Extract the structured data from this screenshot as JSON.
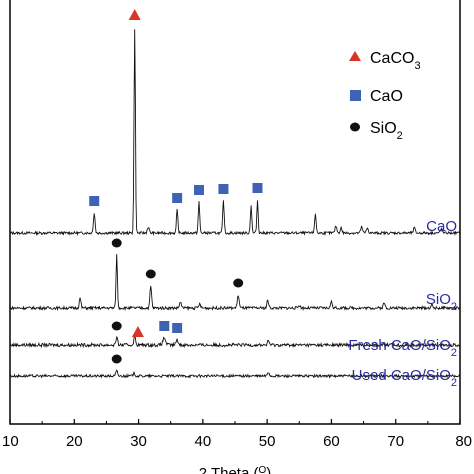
{
  "chart_data": {
    "type": "line",
    "xlabel": "2 Theta (°)",
    "xlim": [
      10,
      80
    ],
    "x_ticks": [
      "10",
      "20",
      "30",
      "40",
      "50",
      "60",
      "70",
      "80"
    ],
    "legend": [
      {
        "marker": "triangle",
        "color": "#d8352a",
        "label": "CaCO3"
      },
      {
        "marker": "square",
        "color": "#3f63b4",
        "label": "CaO"
      },
      {
        "marker": "circle",
        "color": "#111111",
        "label": "SiO2"
      }
    ],
    "series": [
      {
        "name": "CaO",
        "peaks": [
          {
            "x": 23.1,
            "h": 20,
            "w": 0.18
          },
          {
            "x": 29.4,
            "h": 205,
            "w": 0.15
          },
          {
            "x": 31.5,
            "h": 6,
            "w": 0.2
          },
          {
            "x": 36.0,
            "h": 23,
            "w": 0.16
          },
          {
            "x": 39.4,
            "h": 31,
            "w": 0.16
          },
          {
            "x": 43.2,
            "h": 32,
            "w": 0.16
          },
          {
            "x": 47.5,
            "h": 28,
            "w": 0.15
          },
          {
            "x": 48.5,
            "h": 33,
            "w": 0.15
          },
          {
            "x": 57.5,
            "h": 18,
            "w": 0.18
          },
          {
            "x": 60.7,
            "h": 7,
            "w": 0.2
          },
          {
            "x": 61.5,
            "h": 5,
            "w": 0.2
          },
          {
            "x": 64.7,
            "h": 6,
            "w": 0.2
          },
          {
            "x": 65.6,
            "h": 5,
            "w": 0.2
          },
          {
            "x": 72.9,
            "h": 5,
            "w": 0.2
          },
          {
            "x": 77.1,
            "h": 4,
            "w": 0.2
          }
        ],
        "markers": [
          {
            "x": 23.1,
            "shape": "square"
          },
          {
            "x": 29.4,
            "shape": "triangle"
          },
          {
            "x": 36.0,
            "shape": "square"
          },
          {
            "x": 39.4,
            "shape": "square"
          },
          {
            "x": 43.2,
            "shape": "square"
          },
          {
            "x": 48.5,
            "shape": "square"
          }
        ]
      },
      {
        "name": "SiO2",
        "peaks": [
          {
            "x": 20.9,
            "h": 10,
            "w": 0.18
          },
          {
            "x": 26.6,
            "h": 53,
            "w": 0.15
          },
          {
            "x": 31.9,
            "h": 22,
            "w": 0.18
          },
          {
            "x": 36.5,
            "h": 6,
            "w": 0.2
          },
          {
            "x": 39.5,
            "h": 4,
            "w": 0.2
          },
          {
            "x": 45.5,
            "h": 13,
            "w": 0.2
          },
          {
            "x": 50.1,
            "h": 8,
            "w": 0.18
          },
          {
            "x": 55.0,
            "h": 3,
            "w": 0.2
          },
          {
            "x": 60.0,
            "h": 6,
            "w": 0.2
          },
          {
            "x": 68.2,
            "h": 5,
            "w": 0.2
          },
          {
            "x": 75.6,
            "h": 3,
            "w": 0.2
          }
        ],
        "markers": [
          {
            "x": 26.6,
            "shape": "circle"
          },
          {
            "x": 31.9,
            "shape": "circle"
          },
          {
            "x": 45.5,
            "shape": "circle"
          }
        ]
      },
      {
        "name": "Fresh CaO/SiO2",
        "peaks": [
          {
            "x": 26.6,
            "h": 7,
            "w": 0.2
          },
          {
            "x": 29.4,
            "h": 8,
            "w": 0.2
          },
          {
            "x": 34.0,
            "h": 7,
            "w": 0.3
          },
          {
            "x": 36.0,
            "h": 5,
            "w": 0.25
          },
          {
            "x": 50.2,
            "h": 4,
            "w": 0.2
          }
        ],
        "markers": [
          {
            "x": 26.6,
            "shape": "circle"
          },
          {
            "x": 29.9,
            "shape": "triangle"
          },
          {
            "x": 34.0,
            "shape": "square"
          },
          {
            "x": 36.0,
            "shape": "square"
          }
        ]
      },
      {
        "name": "Used CaO/SiO2",
        "peaks": [
          {
            "x": 26.6,
            "h": 5,
            "w": 0.2
          },
          {
            "x": 29.3,
            "h": 3,
            "w": 0.2
          },
          {
            "x": 50.2,
            "h": 4,
            "w": 0.2
          }
        ],
        "markers": [
          {
            "x": 26.6,
            "shape": "circle"
          }
        ]
      }
    ]
  }
}
